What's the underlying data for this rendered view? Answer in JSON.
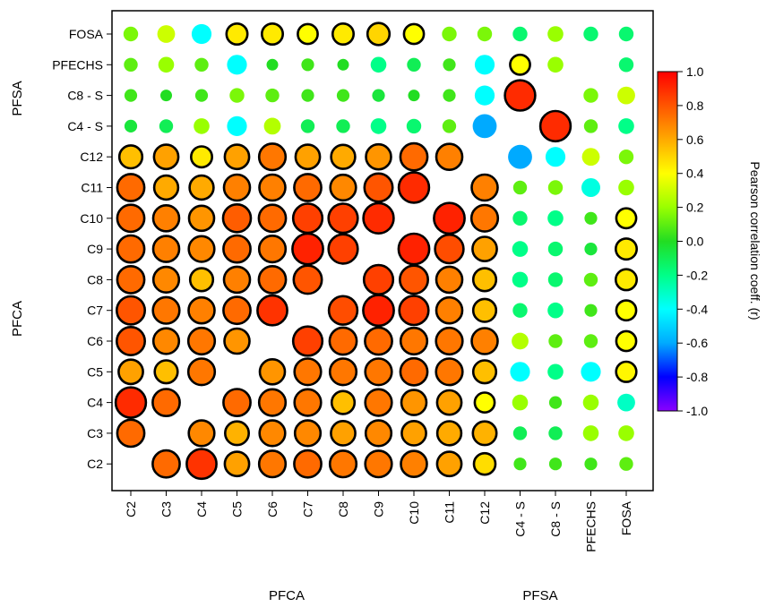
{
  "chart_data": {
    "type": "heatmap",
    "x_categories": [
      "C2",
      "C3",
      "C4",
      "C5",
      "C6",
      "C7",
      "C8",
      "C9",
      "C10",
      "C11",
      "C12",
      "C4 - S",
      "C8 - S",
      "PFECHS",
      "FOSA"
    ],
    "y_categories": [
      "FOSA",
      "PFECHS",
      "C8 - S",
      "C4 - S",
      "C12",
      "C11",
      "C10",
      "C9",
      "C8",
      "C7",
      "C6",
      "C5",
      "C4",
      "C3",
      "C2"
    ],
    "x_group_labels": [
      "PFCA",
      "PFSA"
    ],
    "y_group_labels": [
      "PFSA",
      "PFCA"
    ],
    "color_scale": {
      "label": "Pearson correlation coeff. (r)",
      "min": -1.0,
      "max": 1.0,
      "ticks": [
        "1.0",
        "0.8",
        "0.6",
        "0.4",
        "0.2",
        "0.0",
        "-0.2",
        "-0.4",
        "-0.6",
        "-0.8",
        "-1.0"
      ],
      "colors": [
        "#8a00ff",
        "#0000ff",
        "#00aaff",
        "#00ffff",
        "#00ff88",
        "#22dd22",
        "#99ff00",
        "#ffff00",
        "#ffaa00",
        "#ff5500",
        "#ff0000"
      ]
    },
    "marker_encoding": "circle size and color both encode r; black outline marks strong correlations",
    "values": [
      [
        0.15,
        0.3,
        -0.4,
        0.45,
        0.45,
        0.4,
        0.45,
        0.5,
        0.4,
        0.15,
        0.15,
        -0.15,
        0.2,
        -0.15,
        -0.15
      ],
      [
        0.1,
        0.2,
        0.1,
        -0.4,
        0.0,
        0.05,
        0.0,
        -0.2,
        -0.1,
        0.05,
        -0.4,
        0.4,
        0.2,
        null,
        -0.15
      ],
      [
        0.05,
        0.0,
        0.05,
        0.15,
        0.1,
        0.05,
        0.05,
        -0.05,
        0.0,
        0.05,
        -0.4,
        0.9,
        null,
        0.15,
        0.3
      ],
      [
        -0.05,
        -0.1,
        0.2,
        -0.4,
        0.25,
        -0.1,
        -0.1,
        -0.2,
        -0.15,
        0.1,
        -0.6,
        null,
        0.9,
        0.1,
        -0.2
      ],
      [
        0.55,
        0.62,
        0.45,
        0.62,
        0.72,
        0.62,
        0.6,
        0.65,
        0.75,
        0.7,
        null,
        -0.6,
        -0.4,
        0.3,
        0.15
      ],
      [
        0.75,
        0.6,
        0.6,
        0.7,
        0.7,
        0.75,
        0.68,
        0.8,
        0.9,
        null,
        0.7,
        0.1,
        0.15,
        -0.35,
        0.2
      ],
      [
        0.75,
        0.7,
        0.65,
        0.78,
        0.75,
        0.85,
        0.85,
        0.9,
        null,
        0.92,
        0.72,
        -0.15,
        -0.2,
        0.05,
        0.4
      ],
      [
        0.75,
        0.7,
        0.68,
        0.75,
        0.72,
        0.92,
        0.85,
        null,
        0.92,
        0.82,
        0.62,
        -0.2,
        -0.15,
        -0.05,
        0.45
      ],
      [
        0.75,
        0.68,
        0.55,
        0.7,
        0.75,
        0.8,
        null,
        0.85,
        0.8,
        0.7,
        0.55,
        -0.2,
        -0.15,
        0.1,
        0.45
      ],
      [
        0.8,
        0.72,
        0.7,
        0.75,
        0.88,
        null,
        0.82,
        0.92,
        0.85,
        0.7,
        0.55,
        -0.15,
        -0.2,
        0.05,
        0.4
      ],
      [
        0.8,
        0.68,
        0.72,
        0.65,
        null,
        0.85,
        0.75,
        0.75,
        0.72,
        0.72,
        0.7,
        0.25,
        0.1,
        0.1,
        0.4
      ],
      [
        0.62,
        0.55,
        0.72,
        null,
        0.65,
        0.72,
        0.72,
        0.72,
        0.75,
        0.72,
        0.55,
        -0.4,
        -0.2,
        -0.4,
        0.42
      ],
      [
        0.9,
        0.75,
        null,
        0.75,
        0.72,
        0.72,
        0.55,
        0.72,
        0.65,
        0.62,
        0.4,
        0.2,
        0.05,
        0.2,
        -0.3
      ],
      [
        0.75,
        null,
        0.68,
        0.58,
        0.68,
        0.68,
        0.62,
        0.68,
        0.62,
        0.6,
        0.58,
        -0.1,
        -0.1,
        0.2,
        0.2
      ],
      [
        null,
        0.75,
        0.88,
        0.62,
        0.72,
        0.75,
        0.72,
        0.72,
        0.7,
        0.62,
        0.48,
        0.05,
        0.05,
        0.05,
        0.1
      ]
    ]
  }
}
